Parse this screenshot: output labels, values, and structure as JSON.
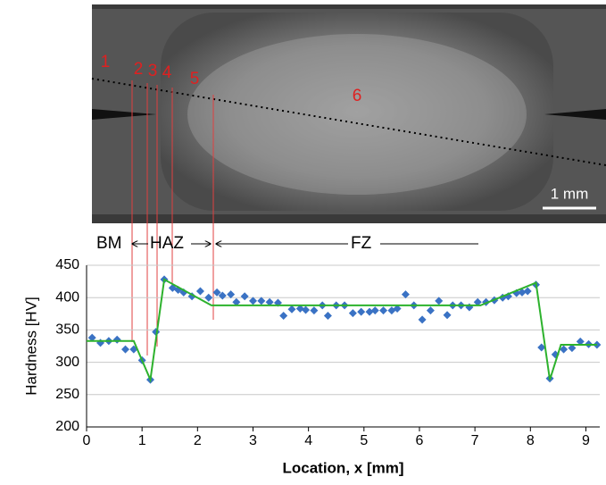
{
  "micrograph": {
    "labels": [
      "1",
      "2",
      "3",
      "4",
      "5",
      "6"
    ],
    "scale_bar": "1 mm"
  },
  "chart_data": {
    "type": "scatter",
    "x_label": "Location, x [mm]",
    "y_label": "Hardness [HV]",
    "annotations": [
      "BM",
      "HAZ",
      "FZ"
    ],
    "xlim": [
      0,
      9.25
    ],
    "ylim": [
      200,
      450
    ],
    "xticks": [
      0,
      1,
      2,
      3,
      4,
      5,
      6,
      7,
      8,
      9
    ],
    "yticks": [
      200,
      250,
      300,
      350,
      400,
      450
    ],
    "grid": true,
    "series": [
      {
        "type": "scatter",
        "color": "#3a72c4",
        "x": [
          0.1,
          0.25,
          0.4,
          0.55,
          0.7,
          0.85,
          1.0,
          1.15,
          1.25,
          1.4,
          1.55,
          1.65,
          1.75,
          1.9,
          2.05,
          2.2,
          2.35,
          2.45,
          2.6,
          2.7,
          2.85,
          3.0,
          3.15,
          3.3,
          3.45,
          3.55,
          3.7,
          3.85,
          3.95,
          4.1,
          4.25,
          4.35,
          4.5,
          4.65,
          4.8,
          4.95,
          5.1,
          5.2,
          5.35,
          5.5,
          5.6,
          5.75,
          5.9,
          6.05,
          6.2,
          6.35,
          6.5,
          6.6,
          6.75,
          6.9,
          7.05,
          7.2,
          7.35,
          7.5,
          7.6,
          7.75,
          7.85,
          7.95,
          8.1,
          8.2,
          8.35,
          8.45,
          8.6,
          8.75,
          8.9,
          9.05,
          9.2
        ],
        "values": [
          338,
          330,
          333,
          335,
          320,
          320,
          303,
          273,
          347,
          428,
          415,
          412,
          408,
          402,
          410,
          400,
          408,
          403,
          405,
          393,
          402,
          395,
          395,
          393,
          392,
          372,
          382,
          383,
          381,
          380,
          388,
          372,
          388,
          388,
          376,
          378,
          378,
          380,
          380,
          380,
          383,
          405,
          388,
          366,
          380,
          395,
          373,
          388,
          388,
          385,
          393,
          393,
          396,
          400,
          402,
          407,
          408,
          410,
          420,
          323,
          275,
          312,
          320,
          322,
          332,
          328,
          327
        ]
      },
      {
        "type": "line",
        "color": "#2db22d",
        "x": [
          0,
          0.85,
          1.15,
          1.4,
          2.25,
          7.1,
          8.1,
          8.35,
          8.55,
          9.2
        ],
        "values": [
          333,
          333,
          273,
          428,
          388,
          388,
          423,
          273,
          327,
          327
        ]
      }
    ]
  }
}
